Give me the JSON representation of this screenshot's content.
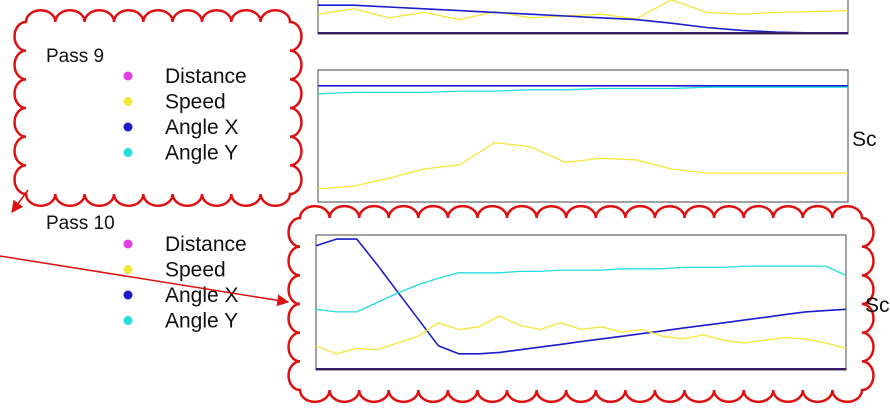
{
  "colors": {
    "cloud_stroke": "#dd1111",
    "arrow": "#dd1111",
    "distance": "#e23de2",
    "speed": "#f5e63a",
    "angle_x": "#1c1ccc",
    "angle_y": "#22dede",
    "axis_base": "#3a1a6a"
  },
  "legend_items": [
    {
      "label": "Distance",
      "color_key": "distance"
    },
    {
      "label": "Speed",
      "color_key": "speed"
    },
    {
      "label": "Angle X",
      "color_key": "angle_x"
    },
    {
      "label": "Angle Y",
      "color_key": "angle_y"
    }
  ],
  "pass9": {
    "title": "Pass 9"
  },
  "pass10": {
    "title": "Pass 10"
  },
  "side_labels": {
    "row2": "Sc",
    "row3": "Sc"
  },
  "chart_data": [
    {
      "type": "line",
      "panel": "top",
      "x": [
        0,
        1,
        2,
        3,
        4,
        5,
        6,
        7,
        8,
        9,
        10,
        11,
        12,
        13,
        14,
        15
      ],
      "series": [
        {
          "color_key": "speed",
          "values": [
            0.55,
            0.7,
            0.45,
            0.6,
            0.4,
            0.62,
            0.45,
            0.5,
            0.55,
            0.42,
            0.95,
            0.6,
            0.55,
            0.6,
            0.62,
            0.65
          ]
        },
        {
          "color_key": "angle_x",
          "values": [
            0.8,
            0.8,
            0.75,
            0.7,
            0.65,
            0.6,
            0.55,
            0.5,
            0.45,
            0.4,
            0.3,
            0.18,
            0.1,
            0.05,
            0.03,
            0.02
          ]
        }
      ],
      "ylim": [
        0,
        1
      ]
    },
    {
      "type": "line",
      "panel": "pass9",
      "x": [
        0,
        1,
        2,
        3,
        4,
        5,
        6,
        7,
        8,
        9,
        10,
        11,
        12,
        13,
        14,
        15
      ],
      "series": [
        {
          "color_key": "angle_x",
          "values": [
            0.88,
            0.88,
            0.88,
            0.88,
            0.88,
            0.88,
            0.88,
            0.88,
            0.88,
            0.88,
            0.88,
            0.88,
            0.88,
            0.88,
            0.88,
            0.88
          ]
        },
        {
          "color_key": "angle_y",
          "values": [
            0.82,
            0.83,
            0.83,
            0.83,
            0.84,
            0.84,
            0.85,
            0.85,
            0.86,
            0.86,
            0.86,
            0.87,
            0.87,
            0.87,
            0.87,
            0.87
          ]
        },
        {
          "color_key": "speed",
          "values": [
            0.1,
            0.12,
            0.18,
            0.25,
            0.28,
            0.45,
            0.42,
            0.3,
            0.33,
            0.32,
            0.25,
            0.22,
            0.22,
            0.22,
            0.22,
            0.22
          ]
        }
      ],
      "ylim": [
        0,
        1
      ]
    },
    {
      "type": "line",
      "panel": "pass10",
      "x": [
        0,
        1,
        2,
        3,
        4,
        5,
        6,
        7,
        8,
        9,
        10,
        11,
        12,
        13,
        14,
        15,
        16,
        17,
        18,
        19,
        20,
        21,
        22,
        23,
        24,
        25,
        26
      ],
      "series": [
        {
          "color_key": "angle_x",
          "values": [
            0.92,
            0.97,
            0.97,
            0.78,
            0.58,
            0.38,
            0.18,
            0.12,
            0.12,
            0.13,
            0.15,
            0.17,
            0.19,
            0.21,
            0.23,
            0.25,
            0.27,
            0.29,
            0.31,
            0.33,
            0.35,
            0.37,
            0.39,
            0.41,
            0.43,
            0.44,
            0.45
          ]
        },
        {
          "color_key": "angle_y",
          "values": [
            0.45,
            0.43,
            0.43,
            0.5,
            0.57,
            0.63,
            0.68,
            0.72,
            0.72,
            0.72,
            0.73,
            0.73,
            0.74,
            0.74,
            0.74,
            0.75,
            0.75,
            0.75,
            0.76,
            0.76,
            0.76,
            0.77,
            0.77,
            0.77,
            0.77,
            0.77,
            0.7
          ]
        },
        {
          "color_key": "speed",
          "values": [
            0.18,
            0.12,
            0.16,
            0.15,
            0.2,
            0.25,
            0.35,
            0.3,
            0.32,
            0.4,
            0.33,
            0.3,
            0.35,
            0.3,
            0.32,
            0.28,
            0.3,
            0.25,
            0.23,
            0.26,
            0.22,
            0.2,
            0.22,
            0.24,
            0.23,
            0.2,
            0.16
          ]
        }
      ],
      "ylim": [
        0,
        1
      ]
    }
  ]
}
